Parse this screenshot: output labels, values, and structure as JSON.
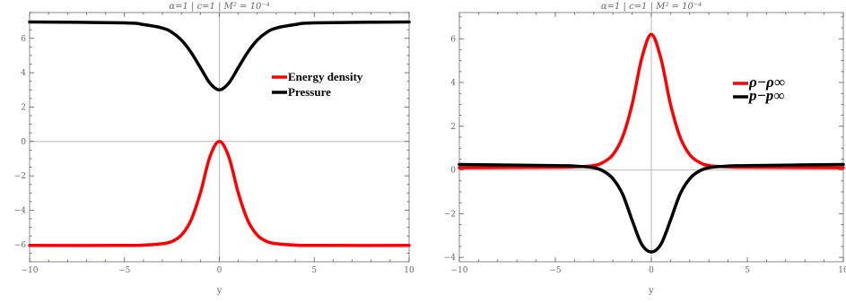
{
  "chart_data": [
    {
      "type": "line",
      "title": "α=1 | c=1 | M² = 10⁻⁴",
      "xlabel": "y",
      "ylabel": "",
      "xlim": [
        -10,
        10
      ],
      "ylim": [
        -7.0,
        7.5
      ],
      "xticks": [
        -10,
        -5,
        0,
        5,
        10
      ],
      "yticks": [
        -6,
        -4,
        -2,
        0,
        2,
        4,
        6
      ],
      "legend_position": "right",
      "series": [
        {
          "name": "Energy density",
          "color": "#ff0000",
          "x": [
            -10,
            -5,
            -4,
            -3,
            -2.5,
            -2,
            -1.5,
            -1,
            -0.5,
            0,
            0.5,
            1,
            1.5,
            2,
            2.5,
            3,
            4,
            5,
            10
          ],
          "y": [
            -6.05,
            -6.05,
            -6.03,
            -5.95,
            -5.82,
            -5.45,
            -4.6,
            -3.0,
            -0.9,
            0.0,
            -0.9,
            -3.0,
            -4.6,
            -5.45,
            -5.82,
            -5.95,
            -6.03,
            -6.05,
            -6.05
          ]
        },
        {
          "name": "Pressure",
          "color": "#000000",
          "x": [
            -10,
            -5,
            -4,
            -3,
            -2.5,
            -2,
            -1.5,
            -1,
            -0.5,
            0,
            0.5,
            1,
            1.5,
            2,
            2.5,
            3,
            4,
            5,
            10
          ],
          "y": [
            6.95,
            6.9,
            6.8,
            6.6,
            6.35,
            5.9,
            5.2,
            4.3,
            3.4,
            3.0,
            3.4,
            4.3,
            5.2,
            5.9,
            6.35,
            6.6,
            6.8,
            6.9,
            6.95
          ]
        }
      ]
    },
    {
      "type": "line",
      "title": "α=1 | c=1 | M² = 10⁻⁴",
      "xlabel": "y",
      "ylabel": "",
      "xlim": [
        -10,
        10
      ],
      "ylim": [
        -4.2,
        7.2
      ],
      "xticks": [
        -10,
        -5,
        0,
        5,
        10
      ],
      "yticks": [
        -4,
        -2,
        0,
        2,
        4,
        6
      ],
      "legend_position": "right",
      "series": [
        {
          "name": "ρ−ρ∞",
          "color": "#ff0000",
          "x": [
            -10,
            -5,
            -4,
            -3,
            -2.5,
            -2,
            -1.5,
            -1,
            -0.5,
            0,
            0.5,
            1,
            1.5,
            2,
            2.5,
            3,
            4,
            5,
            10
          ],
          "y": [
            0.1,
            0.12,
            0.14,
            0.2,
            0.35,
            0.7,
            1.5,
            3.0,
            5.1,
            6.2,
            5.1,
            3.0,
            1.5,
            0.7,
            0.35,
            0.2,
            0.14,
            0.12,
            0.1
          ]
        },
        {
          "name": "p−p∞",
          "color": "#000000",
          "x": [
            -10,
            -5,
            -4,
            -3,
            -2.5,
            -2,
            -1.5,
            -1,
            -0.5,
            0,
            0.5,
            1,
            1.5,
            2,
            2.5,
            3,
            4,
            5,
            10
          ],
          "y": [
            0.25,
            0.2,
            0.18,
            0.1,
            -0.05,
            -0.4,
            -1.1,
            -2.3,
            -3.4,
            -3.75,
            -3.4,
            -2.3,
            -1.1,
            -0.4,
            -0.05,
            0.1,
            0.18,
            0.2,
            0.25
          ]
        }
      ]
    }
  ]
}
